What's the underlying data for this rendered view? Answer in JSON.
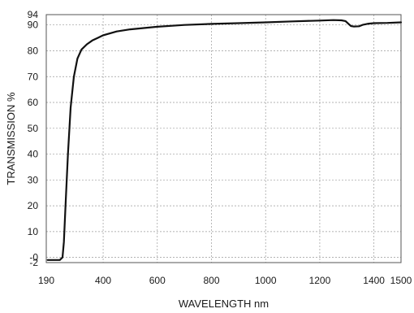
{
  "chart_data": {
    "type": "line",
    "title": "",
    "xlabel": "WAVELENGTH nm",
    "ylabel": "TRANSMISSION %",
    "xlim": [
      190,
      1500
    ],
    "ylim": [
      -2,
      94
    ],
    "x_ticks": [
      {
        "value": 190,
        "label": "190"
      },
      {
        "value": 400,
        "label": "400"
      },
      {
        "value": 600,
        "label": "600"
      },
      {
        "value": 800,
        "label": "800"
      },
      {
        "value": 1000,
        "label": "1000"
      },
      {
        "value": 1200,
        "label": "1200"
      },
      {
        "value": 1400,
        "label": "1400"
      },
      {
        "value": 1500,
        "label": "1500"
      }
    ],
    "y_ticks": [
      {
        "value": -2,
        "label": "-2"
      },
      {
        "value": 0,
        "label": "-0"
      },
      {
        "value": 10,
        "label": "10"
      },
      {
        "value": 20,
        "label": "20"
      },
      {
        "value": 30,
        "label": "30"
      },
      {
        "value": 40,
        "label": "40"
      },
      {
        "value": 50,
        "label": "50"
      },
      {
        "value": 60,
        "label": "60"
      },
      {
        "value": 70,
        "label": "70"
      },
      {
        "value": 80,
        "label": "80"
      },
      {
        "value": 90,
        "label": "90"
      },
      {
        "value": 94,
        "label": "94"
      }
    ],
    "grid": true,
    "series": [
      {
        "color": "#111111",
        "x": [
          195,
          240,
          250,
          255,
          262,
          270,
          280,
          292,
          305,
          320,
          340,
          360,
          380,
          400,
          450,
          500,
          600,
          700,
          800,
          900,
          1000,
          1100,
          1200,
          1250,
          1280,
          1295,
          1305,
          1315,
          1325,
          1345,
          1360,
          1380,
          1400,
          1450,
          1500
        ],
        "y": [
          -1,
          -1,
          0,
          6,
          22,
          40,
          58,
          70,
          77,
          80.5,
          82.5,
          84,
          85,
          86,
          87.5,
          88.3,
          89.3,
          90,
          90.4,
          90.7,
          91,
          91.4,
          91.7,
          91.9,
          91.8,
          91.5,
          90.5,
          89.6,
          89.4,
          89.5,
          90.1,
          90.5,
          90.7,
          90.8,
          91
        ]
      }
    ]
  }
}
